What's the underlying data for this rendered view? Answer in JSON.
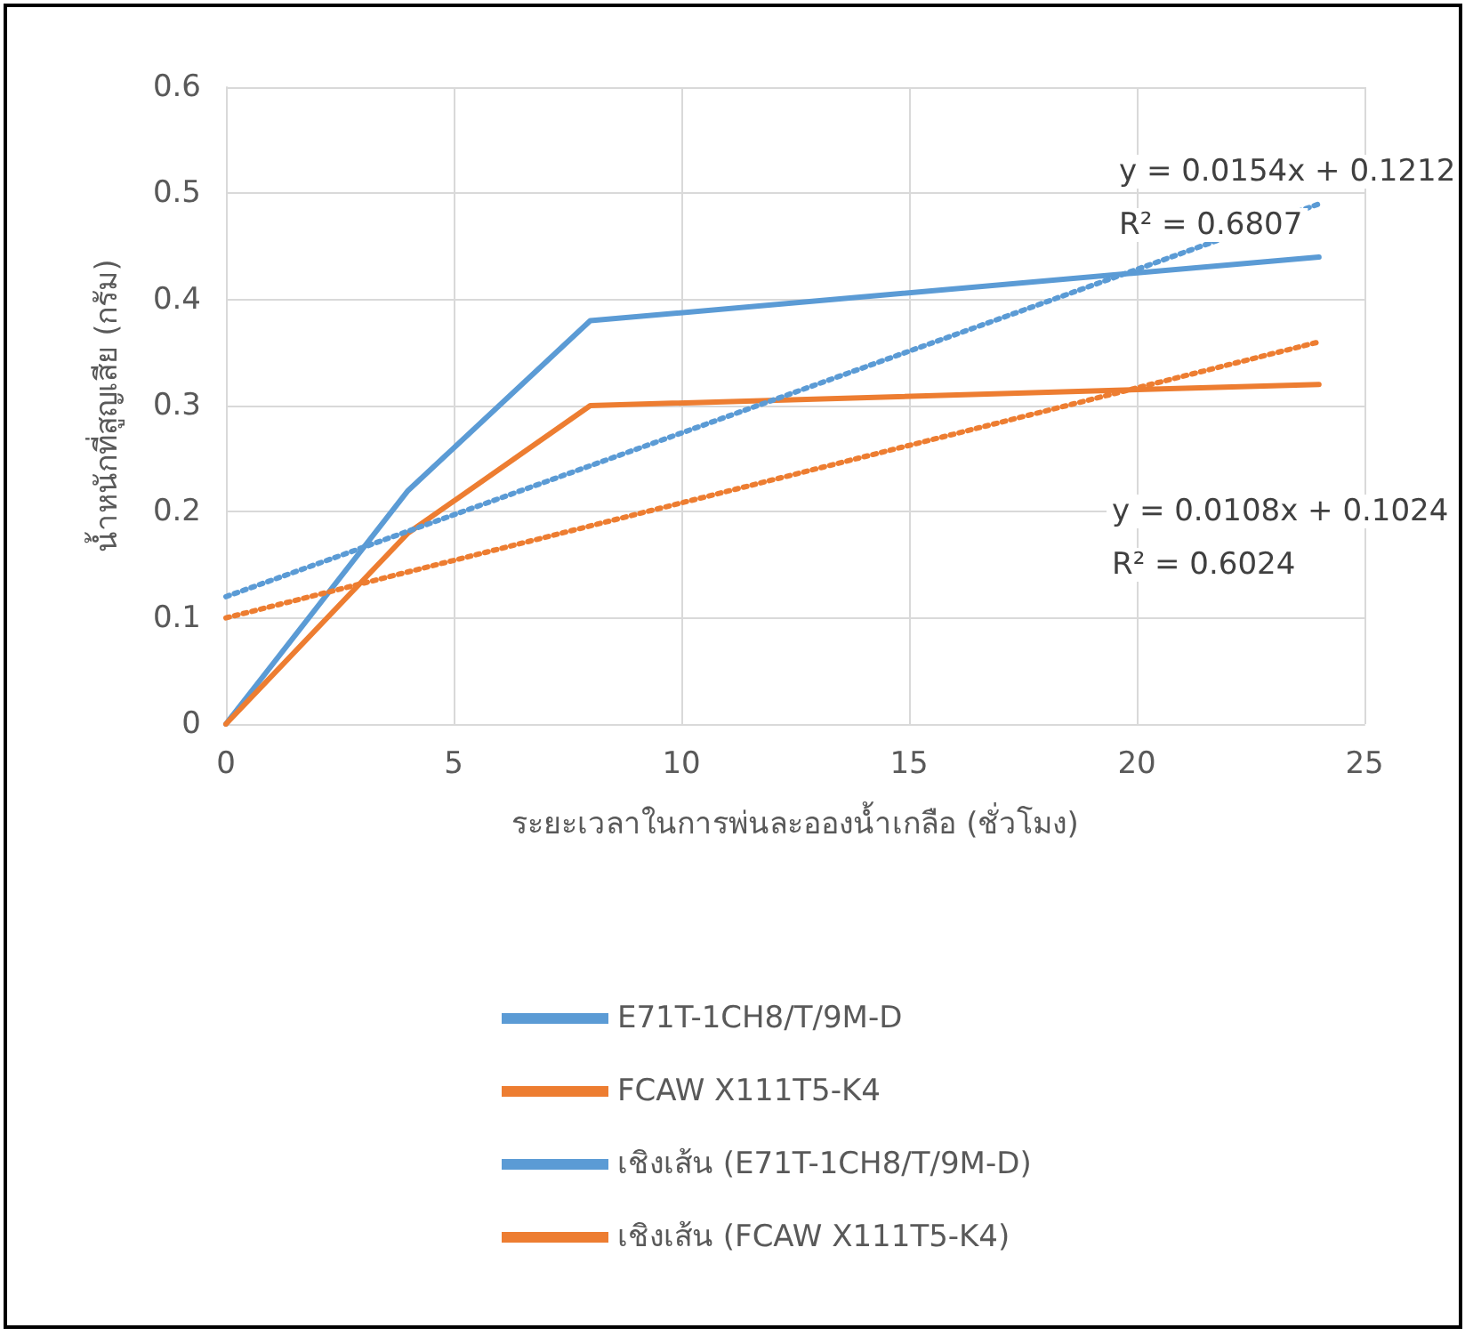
{
  "chart_data": {
    "type": "line",
    "xlabel": "ระยะเวลาในการพ่นละอองน้ำเกลือ (ชั่วโมง)",
    "ylabel": "น้ำหนักที่สูญเสีย (กรัม)",
    "xlim": [
      0,
      25
    ],
    "xticks": [
      0,
      5,
      10,
      15,
      20,
      25
    ],
    "ylim": [
      0,
      0.6
    ],
    "yticks": [
      0,
      0.1,
      0.2,
      0.3,
      0.4,
      0.5,
      0.6
    ],
    "grid": true,
    "legend": "bottom",
    "marker": "none",
    "series": [
      {
        "name": "E71T-1CH8/T/9M-D",
        "color": "#5b9bd5",
        "x": [
          0,
          4,
          8,
          24
        ],
        "values": [
          0,
          0.22,
          0.38,
          0.44
        ],
        "line_style": "solid"
      },
      {
        "name": "FCAW X111T5-K4",
        "color": "#ed7d31",
        "x": [
          0,
          4,
          8,
          24
        ],
        "values": [
          0,
          0.18,
          0.3,
          0.32
        ],
        "line_style": "solid"
      },
      {
        "name": "เชิงเส้น (E71T-1CH8/T/9M-D)",
        "color": "#5b9bd5",
        "x": [
          0,
          24
        ],
        "values": [
          0.12,
          0.49
        ],
        "line_style": "dotted"
      },
      {
        "name": "เชิงเส้น (FCAW X111T5-K4)",
        "color": "#ed7d31",
        "x": [
          0,
          24
        ],
        "values": [
          0.1,
          0.36
        ],
        "line_style": "dotted"
      }
    ],
    "annotations": [
      "y = 0.0154x + 0.1212",
      "R² = 0.6807",
      "y = 0.0108x + 0.1024",
      "R² = 0.6024"
    ]
  }
}
